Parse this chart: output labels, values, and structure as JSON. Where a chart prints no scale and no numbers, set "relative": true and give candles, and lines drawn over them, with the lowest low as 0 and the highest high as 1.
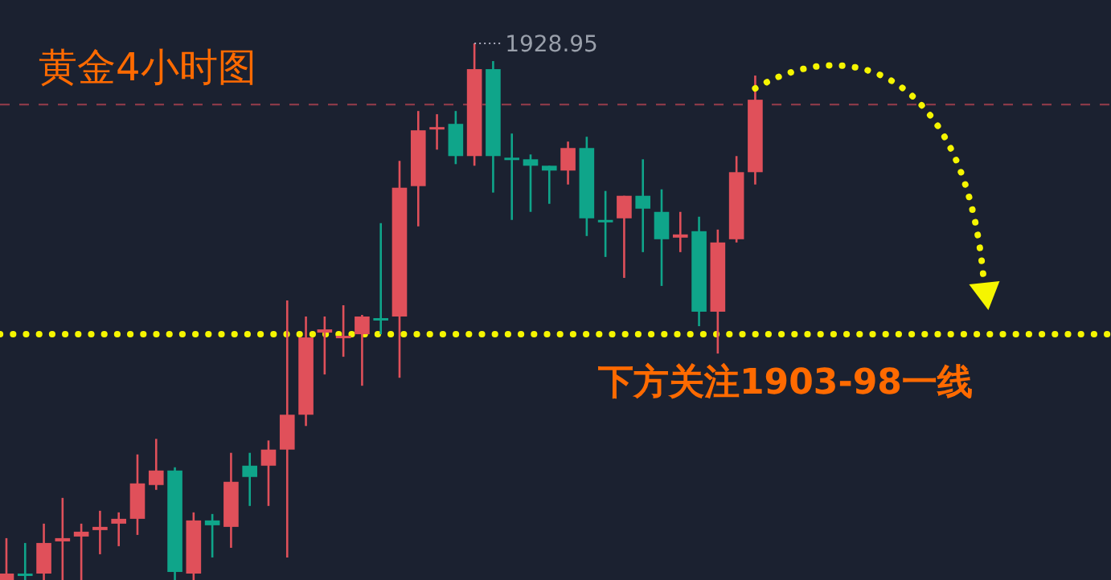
{
  "chart_data": {
    "type": "candlestick",
    "relative": true,
    "title": "黄金4小时图",
    "categories": [
      null,
      null,
      null,
      null,
      null,
      null,
      null,
      null,
      null,
      null,
      null,
      null,
      null,
      null,
      null,
      null,
      null,
      null,
      null,
      null,
      null,
      null,
      null,
      null,
      null,
      null,
      null,
      null,
      null,
      null,
      null,
      null,
      null,
      null,
      null,
      null,
      null,
      null,
      null,
      null,
      null
    ],
    "ohlc": [
      [
        0,
        0.078,
        0,
        0.012
      ],
      [
        0.012,
        0.069,
        0,
        0.009
      ],
      [
        0.012,
        0.105,
        0,
        0.069
      ],
      [
        0.072,
        0.153,
        0,
        0.078
      ],
      [
        0.081,
        0.105,
        0,
        0.09
      ],
      [
        0.093,
        0.129,
        0.048,
        0.099
      ],
      [
        0.105,
        0.126,
        0.063,
        0.114
      ],
      [
        0.114,
        0.234,
        0.084,
        0.18
      ],
      [
        0.177,
        0.263,
        0.168,
        0.204
      ],
      [
        0.204,
        0.21,
        0,
        0.015
      ],
      [
        0.012,
        0.126,
        0,
        0.111
      ],
      [
        0.111,
        0.123,
        0.042,
        0.102
      ],
      [
        0.099,
        0.237,
        0.06,
        0.183
      ],
      [
        0.213,
        0.237,
        0.138,
        0.192
      ],
      [
        0.213,
        0.26,
        0.138,
        0.243
      ],
      [
        0.243,
        0.521,
        0.042,
        0.308
      ],
      [
        0.308,
        0.491,
        0.287,
        0.452
      ],
      [
        0.461,
        0.491,
        0.383,
        0.467
      ],
      [
        0.452,
        0.512,
        0.416,
        0.455
      ],
      [
        0.458,
        0.494,
        0.362,
        0.491
      ],
      [
        0.488,
        0.665,
        0.458,
        0.485
      ],
      [
        0.491,
        0.781,
        0.377,
        0.731
      ],
      [
        0.734,
        0.874,
        0.659,
        0.838
      ],
      [
        0.841,
        0.868,
        0.802,
        0.844
      ],
      [
        0.85,
        0.874,
        0.775,
        0.79
      ],
      [
        0.79,
        1,
        0.772,
        0.952
      ],
      [
        0.952,
        0.967,
        0.722,
        0.79
      ],
      [
        0.787,
        0.832,
        0.671,
        0.784
      ],
      [
        0.784,
        0.793,
        0.686,
        0.772
      ],
      [
        0.772,
        0.772,
        0.701,
        0.763
      ],
      [
        0.763,
        0.817,
        0.737,
        0.805
      ],
      [
        0.805,
        0.826,
        0.641,
        0.674
      ],
      [
        0.671,
        0.725,
        0.602,
        0.668
      ],
      [
        0.674,
        0.716,
        0.563,
        0.716
      ],
      [
        0.716,
        0.784,
        0.611,
        0.692
      ],
      [
        0.686,
        0.728,
        0.548,
        0.635
      ],
      [
        0.638,
        0.686,
        0.611,
        0.644
      ],
      [
        0.65,
        0.677,
        0.473,
        0.5
      ],
      [
        0.5,
        0.653,
        0.422,
        0.629
      ],
      [
        0.635,
        0.79,
        0.629,
        0.76
      ],
      [
        0.76,
        0.94,
        0.737,
        0.895
      ]
    ],
    "colors": [
      "#e0505a",
      "#0fa58a",
      "#e0505a",
      "#e0505a",
      "#e0505a",
      "#e0505a",
      "#e0505a",
      "#e0505a",
      "#e0505a",
      "#0fa58a",
      "#e0505a",
      "#0fa58a",
      "#e0505a",
      "#0fa58a",
      "#e0505a",
      "#e0505a",
      "#e0505a",
      "#e0505a",
      "#e0505a",
      "#e0505a",
      "#0fa58a",
      "#e0505a",
      "#e0505a",
      "#e0505a",
      "#0fa58a",
      "#e0505a",
      "#0fa58a",
      "#0fa58a",
      "#0fa58a",
      "#0fa58a",
      "#e0505a",
      "#0fa58a",
      "#0fa58a",
      "#e0505a",
      "#0fa58a",
      "#0fa58a",
      "#e0505a",
      "#0fa58a",
      "#e0505a",
      "#e0505a",
      "#e0505a"
    ],
    "ref_lines": [
      {
        "axis": "y",
        "value": 0.458,
        "label": "下方关注1903-98一线",
        "color": "#f5f500",
        "line_style": "dotted"
      },
      {
        "axis": "y",
        "value": 0.886,
        "color": "#8a3a48",
        "line_style": "dashed"
      }
    ],
    "annotations": [
      "1928.95"
    ]
  }
}
